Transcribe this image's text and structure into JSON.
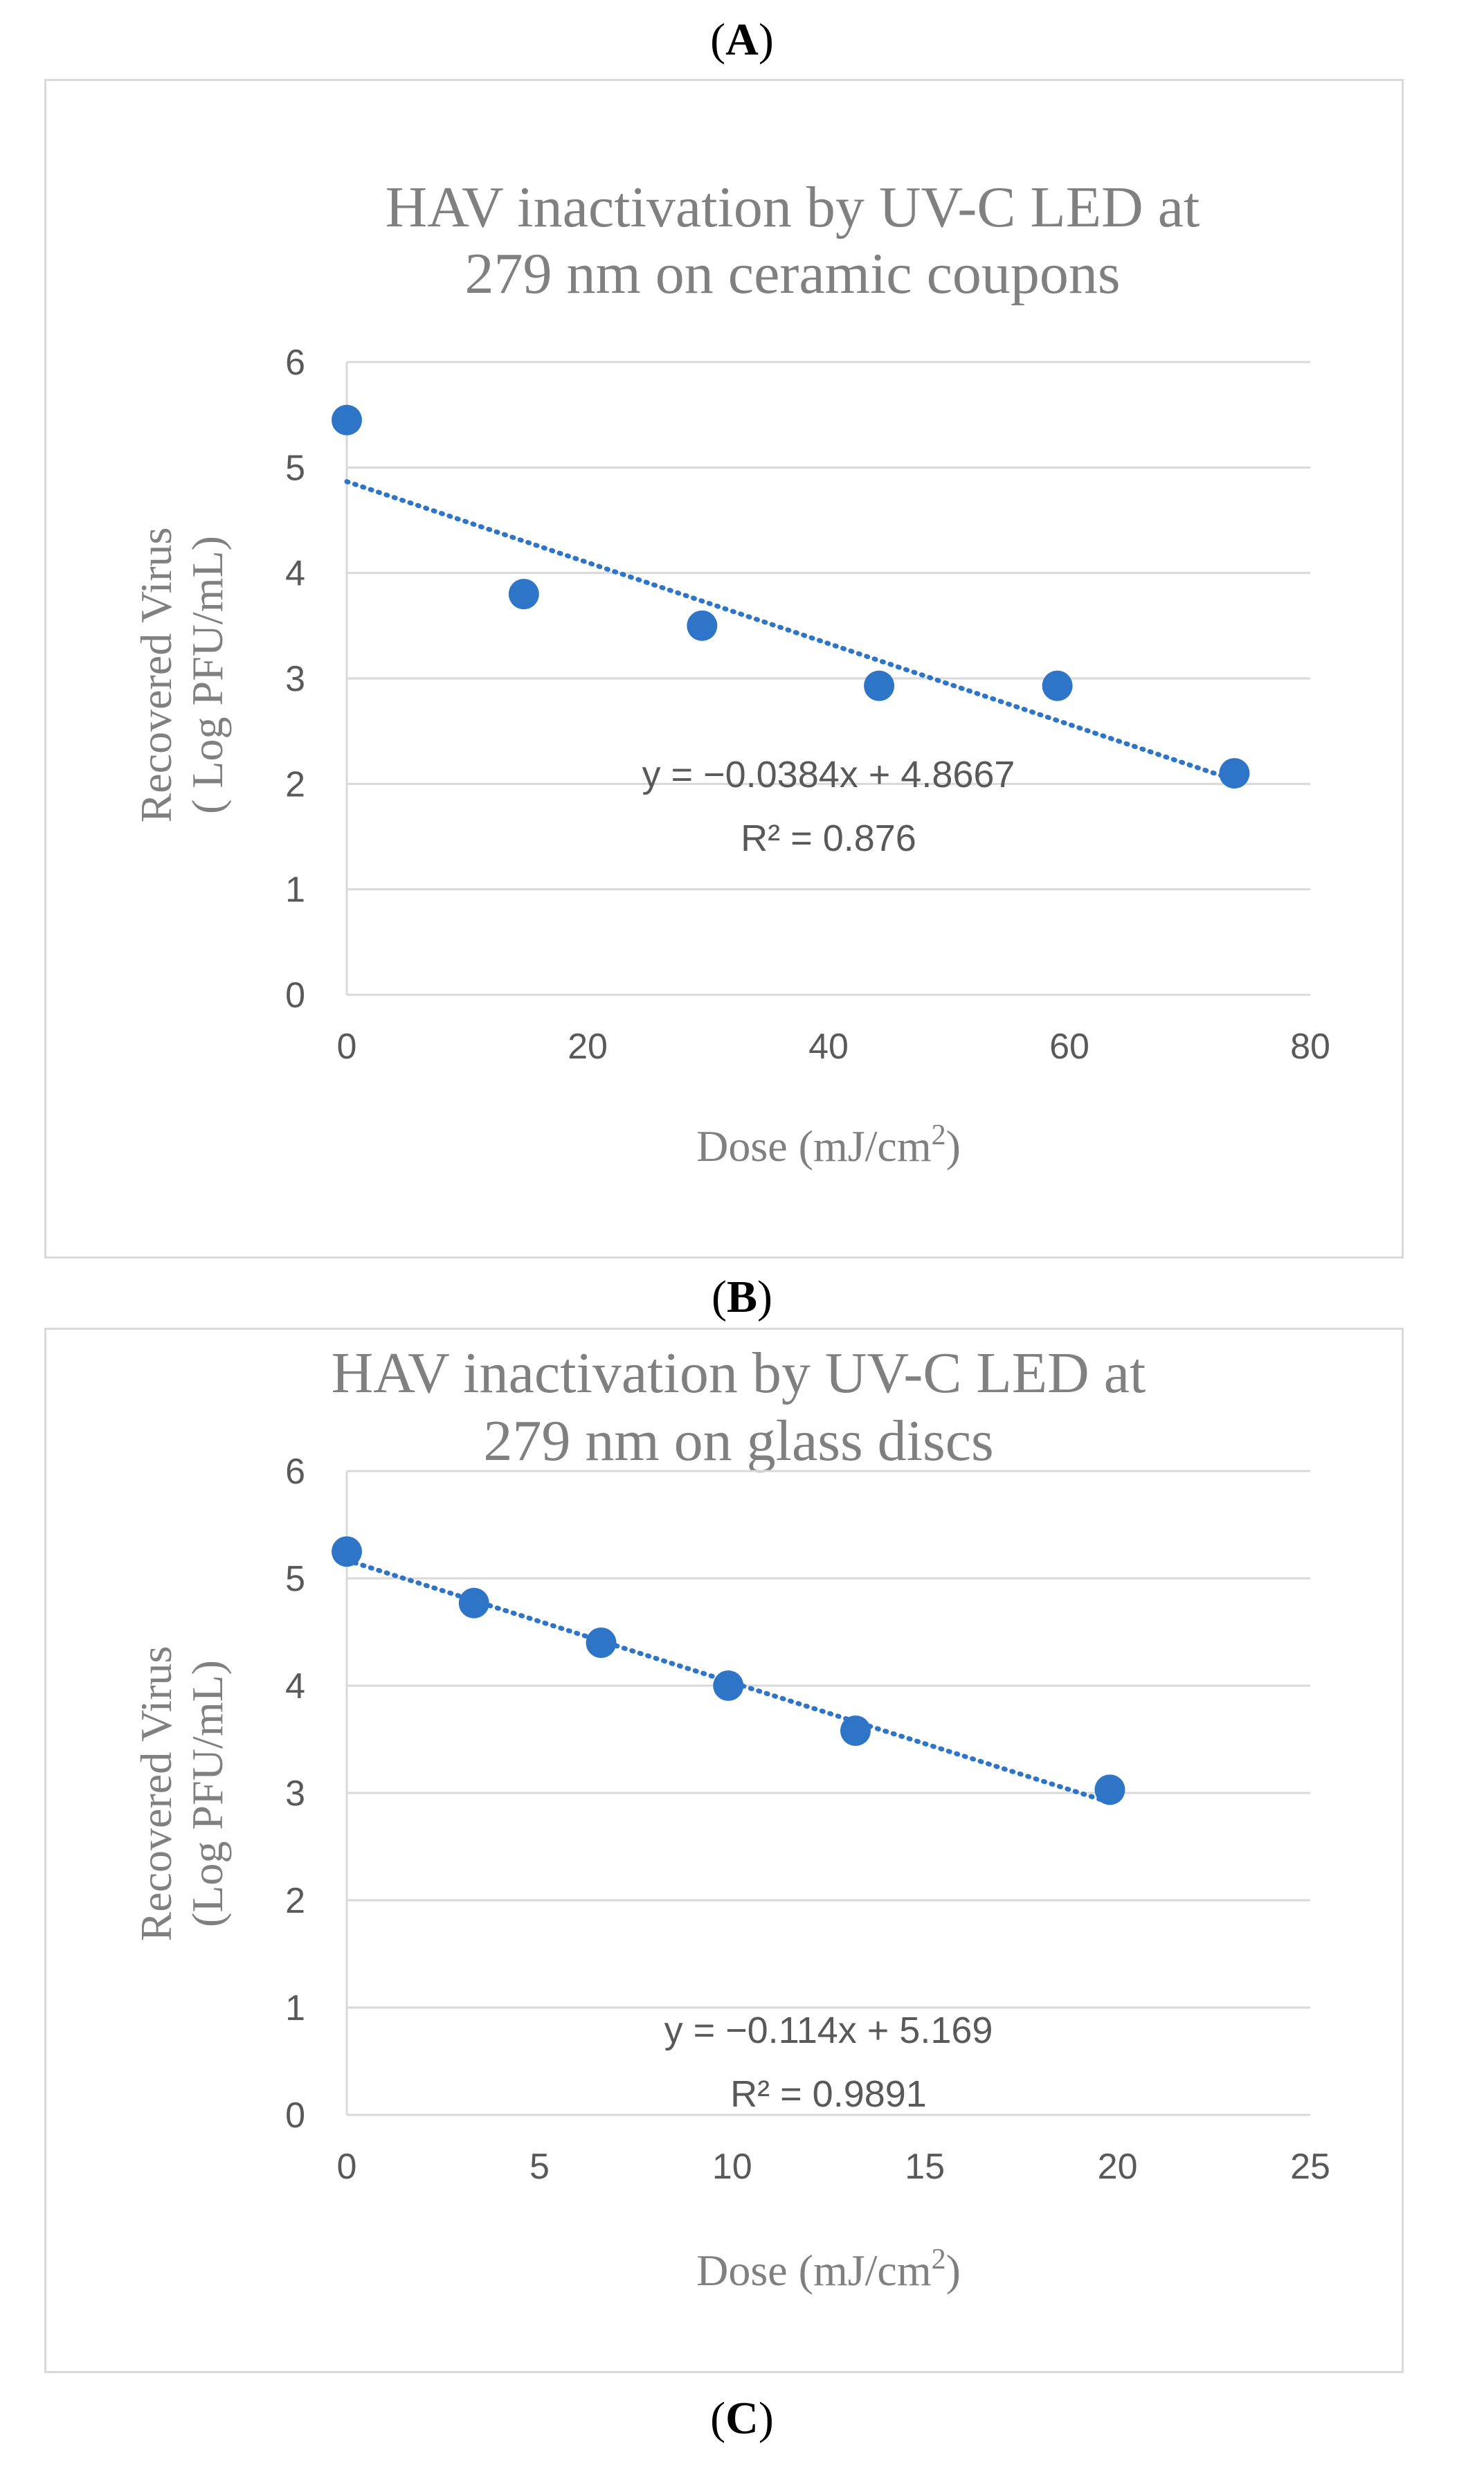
{
  "panels": {
    "a": "A",
    "b": "B",
    "c": "C"
  },
  "chart_data": [
    {
      "type": "scatter",
      "title_line1": "HAV inactivation by UV-C LED at",
      "title_line2": "279 nm on ceramic coupons",
      "xlabel": "Dose (mJ/cm",
      "xlabel_sup": "2",
      "xlabel_end": ")",
      "ylabel_line1": "Recovered Virus",
      "ylabel_line2": "( Log PFU/mL)",
      "xlim": [
        0,
        80
      ],
      "ylim": [
        0,
        6
      ],
      "xticks": [
        "0",
        "20",
        "40",
        "60",
        "80"
      ],
      "yticks": [
        "0",
        "1",
        "2",
        "3",
        "4",
        "5",
        "6"
      ],
      "grid": true,
      "x": [
        0,
        14.7,
        29.5,
        44.2,
        59,
        73.7
      ],
      "y": [
        5.45,
        3.8,
        3.5,
        2.93,
        2.93,
        2.1
      ],
      "marker_color": "#2e75c8",
      "trendline": {
        "slope": -0.0384,
        "intercept": 4.8667,
        "x_start": 0,
        "x_end": 73.7
      },
      "equation": "y = −0.0384x + 4.8667",
      "r2": "R² = 0.876"
    },
    {
      "type": "scatter",
      "title_line1": "HAV inactivation by UV-C LED at",
      "title_line2": "279 nm on glass discs",
      "xlabel": "Dose (mJ/cm",
      "xlabel_sup": "2",
      "xlabel_end": ")",
      "ylabel_line1": "Recovered Virus",
      "ylabel_line2": "(Log PFU/mL)",
      "xlim": [
        0,
        25
      ],
      "ylim": [
        0,
        6
      ],
      "xticks": [
        "0",
        "5",
        "10",
        "15",
        "20",
        "25"
      ],
      "yticks": [
        "0",
        "1",
        "2",
        "3",
        "4",
        "5",
        "6"
      ],
      "grid": true,
      "x": [
        0,
        3.3,
        6.6,
        9.9,
        13.2,
        19.8
      ],
      "y": [
        5.25,
        4.77,
        4.4,
        4.0,
        3.58,
        3.03
      ],
      "marker_color": "#2e75c8",
      "trendline": {
        "slope": -0.114,
        "intercept": 5.169,
        "x_start": 0,
        "x_end": 19.8
      },
      "equation": "y = −0.114x + 5.169",
      "r2": "R² = 0.9891"
    }
  ]
}
